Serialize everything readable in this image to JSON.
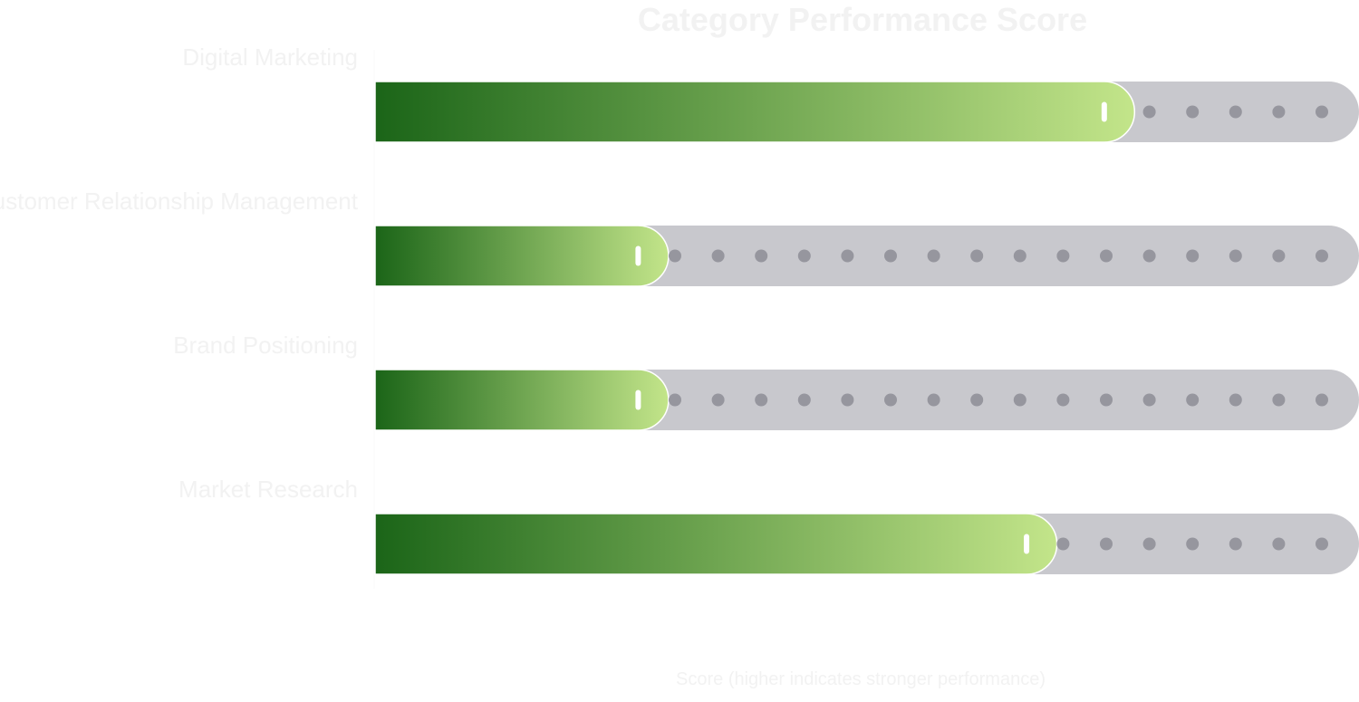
{
  "chart_data": {
    "type": "bar",
    "orientation": "horizontal",
    "title": "Category Performance Score",
    "categories": [
      "Digital Marketing",
      "Customer Relationship Management",
      "Brand Positioning",
      "Market Research"
    ],
    "values": [
      88,
      34,
      34,
      79
    ],
    "xlim": [
      0,
      114
    ],
    "xlabel": "Score (higher indicates stronger performance)",
    "ylabel": "",
    "grid": false,
    "legend": "none",
    "colors": {
      "fill_start": "#1b6518",
      "fill_end": "#c3e58a",
      "track": "#c8c8cd",
      "track_dots": "#96969e",
      "handle": "#ffffff",
      "title_text": "#f2f2f2",
      "label_text": "#f2f2f2"
    }
  }
}
